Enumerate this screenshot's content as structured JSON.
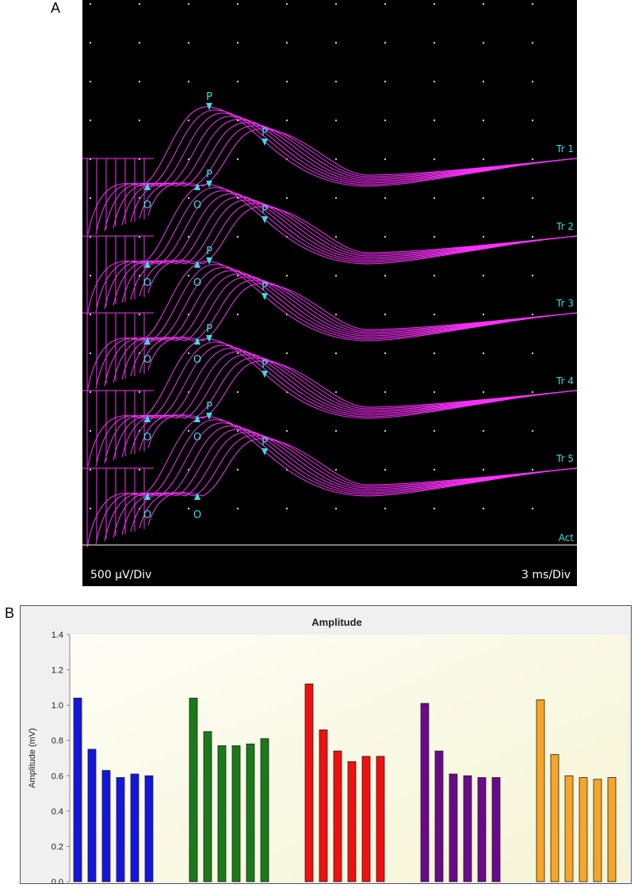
{
  "panels": {
    "a_label": "A",
    "b_label": "B"
  },
  "scope": {
    "scale_left": "500 µV/Div",
    "scale_right": "3 ms/Div",
    "trace_labels": [
      "Tr 1",
      "Tr 2",
      "Tr 3",
      "Tr 4",
      "Tr 5",
      "Act"
    ],
    "onset_marker": "O",
    "peak_marker": "P",
    "colors": {
      "background": "#000000",
      "trace": "#ff30ff",
      "marker": "#33e0e0",
      "grid_dot": "#c8c8c8",
      "baseline": "#ffffff"
    }
  },
  "chart_data": {
    "type": "bar",
    "title": "Amplitude",
    "ylabel": "Amplitude (mV)",
    "xlabel": "",
    "ylim": [
      0,
      1.4
    ],
    "yticks": [
      "0.0",
      "0.2",
      "0.4",
      "0.6",
      "0.8",
      "1.0",
      "1.2",
      "1.4"
    ],
    "grid": false,
    "series": [
      {
        "color": "#1515e0",
        "values": [
          1.04,
          0.75,
          0.63,
          0.59,
          0.61,
          0.6
        ]
      },
      {
        "color": "#1a7a1a",
        "values": [
          1.04,
          0.85,
          0.77,
          0.77,
          0.78,
          0.81
        ]
      },
      {
        "color": "#f01010",
        "values": [
          1.12,
          0.86,
          0.74,
          0.68,
          0.71,
          0.71
        ]
      },
      {
        "color": "#6a0a8a",
        "values": [
          1.01,
          0.74,
          0.61,
          0.6,
          0.59,
          0.59
        ]
      },
      {
        "color": "#f5a528",
        "values": [
          1.03,
          0.72,
          0.6,
          0.59,
          0.58,
          0.59
        ]
      }
    ]
  }
}
